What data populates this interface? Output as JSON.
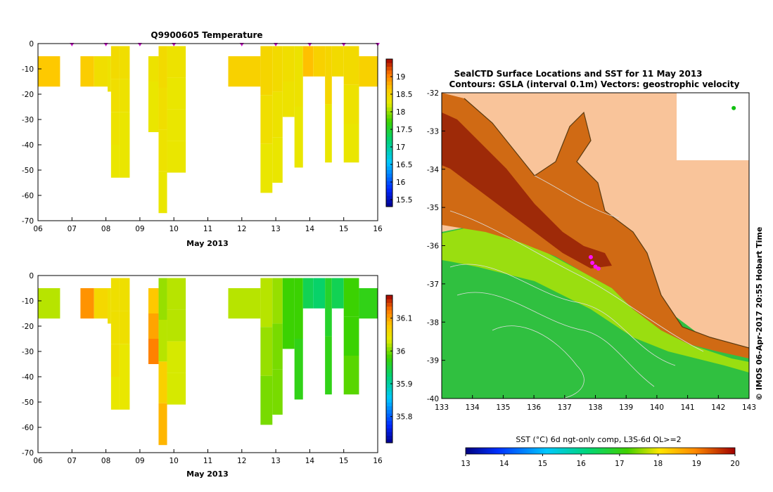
{
  "chart_data": [
    {
      "type": "heatmap",
      "title": "Q9900605  Temperature",
      "xlabel": "May 2013",
      "ylabel": "",
      "x_ticks": [
        "06",
        "07",
        "08",
        "09",
        "10",
        "11",
        "12",
        "13",
        "14",
        "15",
        "16"
      ],
      "x_range": [
        6,
        16
      ],
      "y_ticks": [
        "0",
        "-10",
        "-20",
        "-30",
        "-40",
        "-50",
        "-60",
        "-70"
      ],
      "y_range": [
        -70,
        0
      ],
      "colorbar": {
        "min": 15.3,
        "max": 19.5,
        "ticks": [
          "15.5",
          "16",
          "16.5",
          "17",
          "17.5",
          "18",
          "18.5",
          "19"
        ]
      },
      "profile_markers_x": [
        7.0,
        8.0,
        9.0,
        10.0,
        12.0,
        13.0,
        14.0,
        15.0,
        16.0
      ],
      "profiles": [
        {
          "x0": 6.0,
          "x1": 6.65,
          "top": -5,
          "bottom": -17,
          "values": [
            18.65
          ]
        },
        {
          "x0": 7.25,
          "x1": 7.65,
          "top": -5,
          "bottom": -17,
          "values": [
            18.6
          ]
        },
        {
          "x0": 7.65,
          "x1": 8.05,
          "top": -5,
          "bottom": -17,
          "values": [
            18.4
          ]
        },
        {
          "x0": 8.05,
          "x1": 8.15,
          "top": -5,
          "bottom": -19,
          "values": [
            18.35
          ]
        },
        {
          "x0": 8.15,
          "x1": 8.4,
          "top": -1,
          "bottom": -53,
          "values": [
            18.45,
            18.4,
            18.35,
            18.3
          ]
        },
        {
          "x0": 8.4,
          "x1": 8.7,
          "top": -1,
          "bottom": -53,
          "values": [
            18.4,
            18.35,
            18.3,
            18.3
          ]
        },
        {
          "x0": 9.25,
          "x1": 9.55,
          "top": -5,
          "bottom": -35,
          "values": [
            18.35,
            18.3,
            18.3
          ]
        },
        {
          "x0": 9.55,
          "x1": 9.8,
          "top": -1,
          "bottom": -67,
          "values": [
            18.45,
            18.4,
            18.35,
            18.3
          ]
        },
        {
          "x0": 9.8,
          "x1": 10.35,
          "top": -1,
          "bottom": -51,
          "values": [
            18.35,
            18.3,
            18.3,
            18.3
          ]
        },
        {
          "x0": 11.6,
          "x1": 12.55,
          "top": -5,
          "bottom": -17,
          "values": [
            18.55
          ]
        },
        {
          "x0": 12.55,
          "x1": 12.9,
          "top": -1,
          "bottom": -59,
          "values": [
            18.5,
            18.4,
            18.3
          ]
        },
        {
          "x0": 12.9,
          "x1": 13.2,
          "top": -1,
          "bottom": -55,
          "values": [
            18.45,
            18.35,
            18.3
          ]
        },
        {
          "x0": 13.2,
          "x1": 13.55,
          "top": -1,
          "bottom": -29,
          "values": [
            18.4,
            18.35
          ]
        },
        {
          "x0": 13.55,
          "x1": 13.8,
          "top": -1,
          "bottom": -49,
          "values": [
            18.35,
            18.3
          ]
        },
        {
          "x0": 13.8,
          "x1": 14.1,
          "top": -1,
          "bottom": -13,
          "values": [
            18.7
          ]
        },
        {
          "x0": 14.1,
          "x1": 14.45,
          "top": -1,
          "bottom": -13,
          "values": [
            18.55
          ]
        },
        {
          "x0": 14.45,
          "x1": 14.65,
          "top": -1,
          "bottom": -47,
          "values": [
            18.5,
            18.3
          ]
        },
        {
          "x0": 14.65,
          "x1": 15.0,
          "top": -1,
          "bottom": -13,
          "values": [
            18.45
          ]
        },
        {
          "x0": 15.0,
          "x1": 15.45,
          "top": -1,
          "bottom": -47,
          "values": [
            18.45,
            18.35,
            18.3
          ]
        },
        {
          "x0": 15.45,
          "x1": 16.0,
          "top": -5,
          "bottom": -17,
          "values": [
            18.55
          ]
        }
      ]
    },
    {
      "type": "heatmap",
      "title": "",
      "xlabel": "May 2013",
      "ylabel": "",
      "x_ticks": [
        "06",
        "07",
        "08",
        "09",
        "10",
        "11",
        "12",
        "13",
        "14",
        "15",
        "16"
      ],
      "x_range": [
        6,
        16
      ],
      "y_ticks": [
        "0",
        "-10",
        "-20",
        "-30",
        "-40",
        "-50",
        "-60",
        "-70"
      ],
      "y_range": [
        -70,
        0
      ],
      "colorbar": {
        "min": 35.72,
        "max": 36.17,
        "ticks": [
          "35.8",
          "35.9",
          "36",
          "36.1"
        ]
      },
      "profiles": [
        {
          "x0": 6.0,
          "x1": 6.65,
          "top": -5,
          "bottom": -17,
          "values": [
            36.02
          ]
        },
        {
          "x0": 7.25,
          "x1": 7.65,
          "top": -5,
          "bottom": -17,
          "values": [
            36.11
          ]
        },
        {
          "x0": 7.65,
          "x1": 8.05,
          "top": -5,
          "bottom": -17,
          "values": [
            36.06
          ]
        },
        {
          "x0": 8.05,
          "x1": 8.15,
          "top": -5,
          "bottom": -19,
          "values": [
            36.05
          ]
        },
        {
          "x0": 8.15,
          "x1": 8.4,
          "top": -1,
          "bottom": -53,
          "values": [
            36.05,
            36.05,
            36.05,
            36.04
          ]
        },
        {
          "x0": 8.4,
          "x1": 8.7,
          "top": -1,
          "bottom": -53,
          "values": [
            36.05,
            36.05,
            36.04,
            36.04
          ]
        },
        {
          "x0": 9.25,
          "x1": 9.55,
          "top": -5,
          "bottom": -35,
          "values": [
            36.08,
            36.1,
            36.12
          ]
        },
        {
          "x0": 9.55,
          "x1": 9.8,
          "top": -1,
          "bottom": -67,
          "values": [
            36.01,
            36.02,
            36.07,
            36.09
          ]
        },
        {
          "x0": 9.8,
          "x1": 10.35,
          "top": -1,
          "bottom": -51,
          "values": [
            36.02,
            36.02,
            36.03,
            36.03
          ]
        },
        {
          "x0": 11.6,
          "x1": 12.55,
          "top": -5,
          "bottom": -17,
          "values": [
            36.02
          ]
        },
        {
          "x0": 12.55,
          "x1": 12.9,
          "top": -1,
          "bottom": -59,
          "values": [
            36.02,
            36.01,
            36.0
          ]
        },
        {
          "x0": 12.9,
          "x1": 13.2,
          "top": -1,
          "bottom": -55,
          "values": [
            36.01,
            36.0,
            36.0
          ]
        },
        {
          "x0": 13.2,
          "x1": 13.55,
          "top": -1,
          "bottom": -29,
          "values": [
            35.98,
            35.98
          ]
        },
        {
          "x0": 13.55,
          "x1": 13.8,
          "top": -1,
          "bottom": -49,
          "values": [
            35.98,
            35.97
          ]
        },
        {
          "x0": 13.8,
          "x1": 14.1,
          "top": -1,
          "bottom": -13,
          "values": [
            35.94
          ]
        },
        {
          "x0": 14.1,
          "x1": 14.45,
          "top": -1,
          "bottom": -13,
          "values": [
            35.93
          ]
        },
        {
          "x0": 14.45,
          "x1": 14.65,
          "top": -1,
          "bottom": -47,
          "values": [
            35.96,
            35.97
          ]
        },
        {
          "x0": 14.65,
          "x1": 15.0,
          "top": -1,
          "bottom": -13,
          "values": [
            35.94
          ]
        },
        {
          "x0": 15.0,
          "x1": 15.45,
          "top": -1,
          "bottom": -47,
          "values": [
            35.98,
            35.98,
            35.99
          ]
        },
        {
          "x0": 15.45,
          "x1": 16.0,
          "top": -5,
          "bottom": -17,
          "values": [
            35.97
          ]
        }
      ]
    },
    {
      "type": "heatmap",
      "title": "SealCTD Surface Locations and SST for 11 May 2013",
      "subtitle": "Contours: GSLA (interval 0.1m) Vectors: geostrophic velocity",
      "xlabel": "",
      "ylabel": "",
      "x_ticks": [
        "133",
        "134",
        "135",
        "136",
        "137",
        "138",
        "139",
        "140",
        "141",
        "142",
        "143"
      ],
      "x_range": [
        133,
        143
      ],
      "y_ticks": [
        "-32",
        "-33",
        "-34",
        "-35",
        "-36",
        "-37",
        "-38",
        "-39",
        "-40"
      ],
      "y_range": [
        -40,
        -32
      ],
      "colorbar": {
        "label": "SST (°C) 6d ngt-only comp, L3S-6d QL>=2",
        "min": 13,
        "max": 20,
        "ticks": [
          "13",
          "14",
          "15",
          "16",
          "17",
          "18",
          "19",
          "20"
        ]
      },
      "credit": "© IMOS 06-Apr-2017 20:55 Hobart Time",
      "seal_locations": [
        [
          137.9,
          -36.45
        ],
        [
          138.0,
          -36.55
        ],
        [
          138.1,
          -36.6
        ],
        [
          137.85,
          -36.3
        ],
        [
          142.5,
          -32.4
        ]
      ]
    }
  ]
}
